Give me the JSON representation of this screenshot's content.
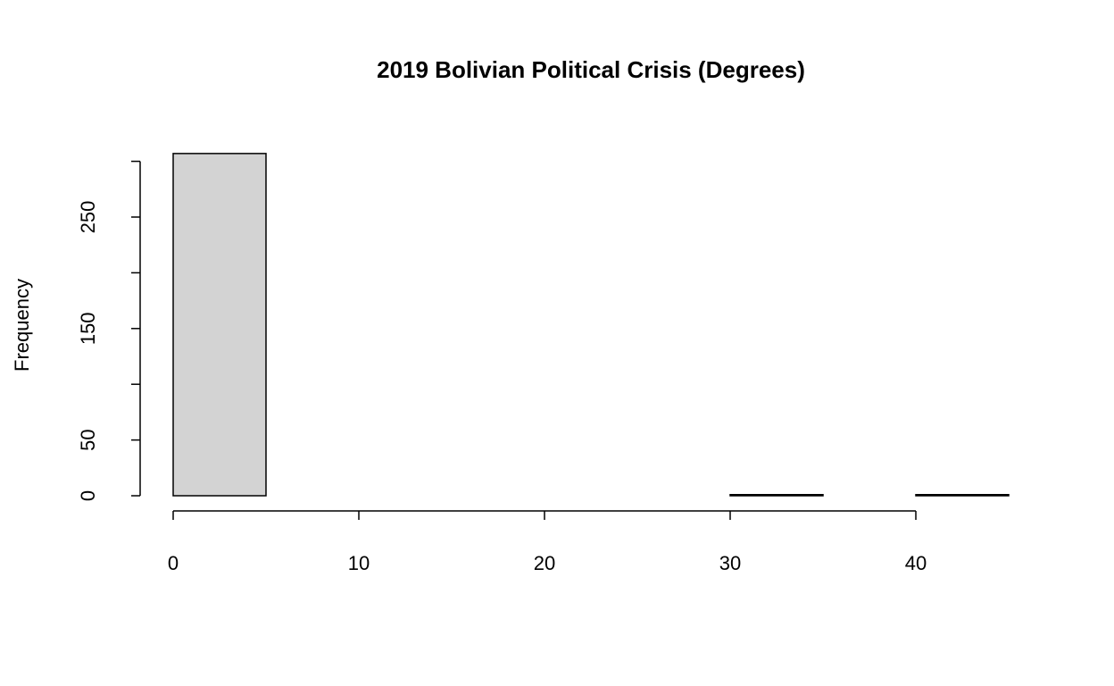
{
  "chart_data": {
    "type": "histogram",
    "title": "2019 Bolivian Political Crisis (Degrees)",
    "ylabel": "Frequency",
    "bins": [
      0,
      5,
      10,
      15,
      20,
      25,
      30,
      35,
      40,
      45
    ],
    "values": [
      307,
      0,
      0,
      0,
      0,
      0,
      1,
      0,
      1
    ],
    "color": "#d3d3d3",
    "xlim": [
      0,
      45
    ],
    "xticks": [
      0,
      10,
      20,
      30,
      40
    ],
    "ylim": [
      0,
      300
    ],
    "yticks": [
      0,
      50,
      {
        "value": 100,
        "label": null
      },
      150,
      {
        "value": 200,
        "label": null
      },
      250,
      {
        "value": 300,
        "label": null
      }
    ]
  }
}
